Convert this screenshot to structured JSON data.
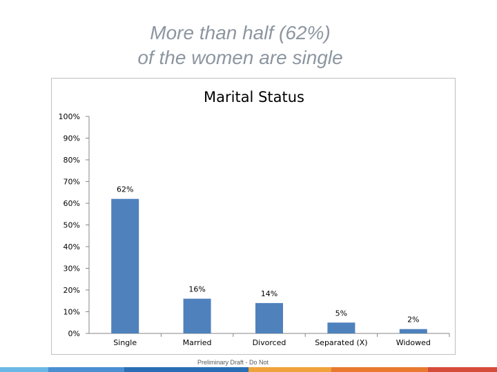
{
  "slide": {
    "title_line1": "More than half (62%)",
    "title_line2": "of the women are single",
    "footer_note": "Preliminary Draft - Do Not"
  },
  "chart_data": {
    "type": "bar",
    "title": "Marital Status",
    "categories": [
      "Single",
      "Married",
      "Divorced",
      "Separated (X)",
      "Widowed"
    ],
    "values": [
      62,
      16,
      14,
      5,
      2
    ],
    "data_labels": [
      "62%",
      "16%",
      "14%",
      "5%",
      "2%"
    ],
    "ylim": [
      0,
      100
    ],
    "yticks": [
      0,
      10,
      20,
      30,
      40,
      50,
      60,
      70,
      80,
      90,
      100
    ],
    "ytick_labels": [
      "0%",
      "10%",
      "20%",
      "30%",
      "40%",
      "50%",
      "60%",
      "70%",
      "80%",
      "90%",
      "100%"
    ],
    "xlabel": "",
    "ylabel": "",
    "grid": false,
    "legend": "none",
    "bar_color": "#4f81bd"
  },
  "colors": {
    "title": "#8c96a0",
    "footer_stripes": [
      "#6bb8e6",
      "#4a8fd1",
      "#2a6fb5",
      "#f0a33a",
      "#e8792f",
      "#d64c3b"
    ]
  }
}
